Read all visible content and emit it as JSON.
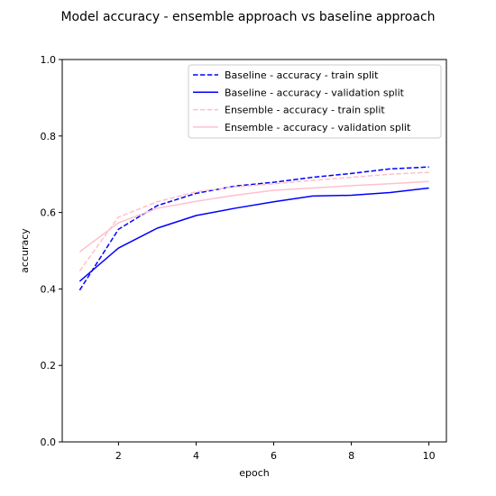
{
  "chart_data": {
    "type": "line",
    "title": "Model accuracy - ensemble approach vs baseline approach",
    "xlabel": "epoch",
    "ylabel": "accuracy",
    "xlim": [
      0.55,
      10.45
    ],
    "ylim": [
      0.0,
      1.0
    ],
    "xticks": [
      2,
      4,
      6,
      8,
      10
    ],
    "yticks": [
      0.0,
      0.2,
      0.4,
      0.6,
      0.8,
      1.0
    ],
    "ytick_labels": [
      "0.0",
      "0.2",
      "0.4",
      "0.6",
      "0.8",
      "1.0"
    ],
    "xtick_labels": [
      "2",
      "4",
      "6",
      "8",
      "10"
    ],
    "grid": false,
    "legend_position": "top-right",
    "x": [
      1,
      2,
      3,
      4,
      5,
      6,
      7,
      8,
      9,
      10
    ],
    "series": [
      {
        "name": "Baseline - accuracy - train split",
        "color": "#0000ff",
        "style": "dashed",
        "values": [
          0.397,
          0.556,
          0.618,
          0.65,
          0.669,
          0.679,
          0.692,
          0.702,
          0.714,
          0.719
        ]
      },
      {
        "name": "Baseline - accuracy - validation split",
        "color": "#0000ff",
        "style": "solid",
        "values": [
          0.42,
          0.507,
          0.559,
          0.592,
          0.611,
          0.628,
          0.643,
          0.645,
          0.652,
          0.664
        ]
      },
      {
        "name": "Ensemble - accuracy - train split",
        "color": "#ffc0cb",
        "style": "dashed",
        "values": [
          0.447,
          0.588,
          0.628,
          0.654,
          0.667,
          0.675,
          0.684,
          0.692,
          0.7,
          0.705
        ]
      },
      {
        "name": "Ensemble - accuracy - validation split",
        "color": "#ffc0cb",
        "style": "solid",
        "values": [
          0.497,
          0.573,
          0.611,
          0.629,
          0.645,
          0.658,
          0.664,
          0.67,
          0.675,
          0.681
        ]
      }
    ]
  }
}
